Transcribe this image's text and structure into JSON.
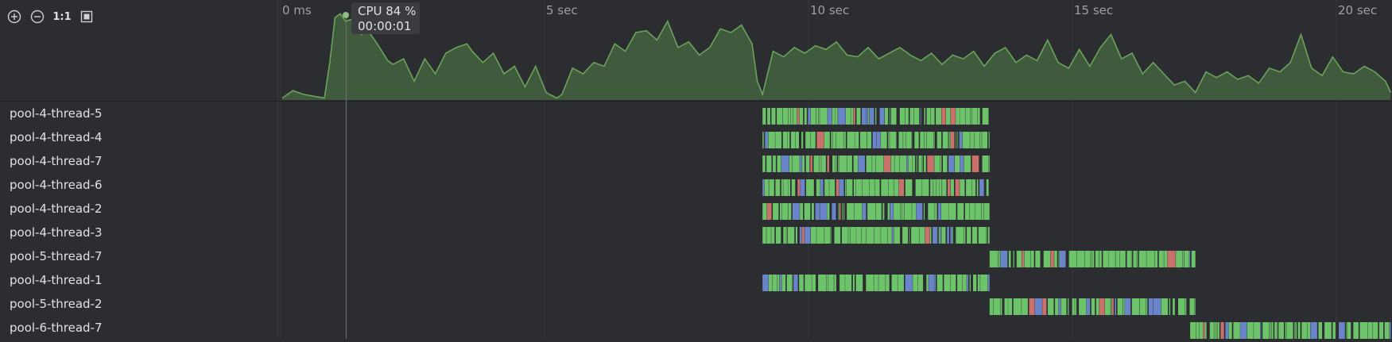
{
  "toolbar": {
    "zoom_in_icon": "plus-circle-icon",
    "zoom_out_icon": "minus-circle-icon",
    "actual_size_label": "1:1",
    "fit_icon": "fit-frame-icon"
  },
  "axis": {
    "ticks": [
      {
        "label": "0 ms",
        "seconds": 0
      },
      {
        "label": "5 sec",
        "seconds": 5
      },
      {
        "label": "10 sec",
        "seconds": 10
      },
      {
        "label": "15 sec",
        "seconds": 15
      },
      {
        "label": "20 sec",
        "seconds": 20
      }
    ],
    "range_seconds": [
      0,
      21.0
    ]
  },
  "tooltip": {
    "cpu_label": "CPU 84 %",
    "time_label": "00:00:01",
    "cursor_seconds": 1.2
  },
  "colors": {
    "cpu_fill": "#3f5a3c",
    "cpu_line": "#6aa35a",
    "running": "#6cc36a",
    "waiting": "#6a84c9",
    "blocked": "#c9706a",
    "background": "#2b2d30"
  },
  "threads": [
    {
      "name": "pool-4-thread-5",
      "start": 9.1,
      "end": 13.4
    },
    {
      "name": "pool-4-thread-4",
      "start": 9.1,
      "end": 13.4
    },
    {
      "name": "pool-4-thread-7",
      "start": 9.1,
      "end": 13.4
    },
    {
      "name": "pool-4-thread-6",
      "start": 9.1,
      "end": 13.4
    },
    {
      "name": "pool-4-thread-2",
      "start": 9.1,
      "end": 13.4
    },
    {
      "name": "pool-4-thread-3",
      "start": 9.1,
      "end": 13.4
    },
    {
      "name": "pool-5-thread-7",
      "start": 13.4,
      "end": 17.3
    },
    {
      "name": "pool-4-thread-1",
      "start": 9.1,
      "end": 13.4
    },
    {
      "name": "pool-5-thread-2",
      "start": 13.4,
      "end": 17.3
    },
    {
      "name": "pool-6-thread-7",
      "start": 17.2,
      "end": 21.0
    }
  ],
  "cpu_chart": {
    "type": "area",
    "ylim": [
      0,
      100
    ],
    "points": [
      [
        0.0,
        2
      ],
      [
        0.2,
        10
      ],
      [
        0.4,
        6
      ],
      [
        0.6,
        4
      ],
      [
        0.8,
        2
      ],
      [
        0.9,
        40
      ],
      [
        1.0,
        88
      ],
      [
        1.1,
        92
      ],
      [
        1.2,
        84
      ],
      [
        1.3,
        86
      ],
      [
        1.4,
        80
      ],
      [
        1.5,
        70
      ],
      [
        1.6,
        76
      ],
      [
        1.8,
        60
      ],
      [
        2.0,
        42
      ],
      [
        2.1,
        38
      ],
      [
        2.3,
        44
      ],
      [
        2.5,
        20
      ],
      [
        2.7,
        44
      ],
      [
        2.9,
        28
      ],
      [
        3.1,
        50
      ],
      [
        3.3,
        56
      ],
      [
        3.5,
        60
      ],
      [
        3.6,
        52
      ],
      [
        3.8,
        40
      ],
      [
        4.0,
        50
      ],
      [
        4.2,
        28
      ],
      [
        4.4,
        36
      ],
      [
        4.6,
        14
      ],
      [
        4.8,
        36
      ],
      [
        5.0,
        8
      ],
      [
        5.2,
        2
      ],
      [
        5.3,
        6
      ],
      [
        5.5,
        34
      ],
      [
        5.7,
        28
      ],
      [
        5.9,
        40
      ],
      [
        6.1,
        36
      ],
      [
        6.3,
        60
      ],
      [
        6.5,
        52
      ],
      [
        6.7,
        72
      ],
      [
        6.9,
        74
      ],
      [
        7.1,
        64
      ],
      [
        7.3,
        84
      ],
      [
        7.5,
        56
      ],
      [
        7.7,
        62
      ],
      [
        7.9,
        48
      ],
      [
        8.1,
        56
      ],
      [
        8.3,
        76
      ],
      [
        8.5,
        72
      ],
      [
        8.7,
        80
      ],
      [
        8.9,
        60
      ],
      [
        9.0,
        20
      ],
      [
        9.1,
        6
      ],
      [
        9.3,
        52
      ],
      [
        9.5,
        46
      ],
      [
        9.7,
        56
      ],
      [
        9.9,
        50
      ],
      [
        10.1,
        58
      ],
      [
        10.3,
        54
      ],
      [
        10.5,
        62
      ],
      [
        10.7,
        48
      ],
      [
        10.9,
        46
      ],
      [
        11.1,
        56
      ],
      [
        11.3,
        44
      ],
      [
        11.5,
        50
      ],
      [
        11.7,
        56
      ],
      [
        11.9,
        48
      ],
      [
        12.1,
        42
      ],
      [
        12.3,
        50
      ],
      [
        12.5,
        38
      ],
      [
        12.7,
        48
      ],
      [
        12.9,
        44
      ],
      [
        13.1,
        52
      ],
      [
        13.3,
        36
      ],
      [
        13.5,
        50
      ],
      [
        13.7,
        56
      ],
      [
        13.9,
        40
      ],
      [
        14.1,
        48
      ],
      [
        14.3,
        42
      ],
      [
        14.5,
        64
      ],
      [
        14.7,
        40
      ],
      [
        14.9,
        34
      ],
      [
        15.1,
        54
      ],
      [
        15.3,
        36
      ],
      [
        15.5,
        56
      ],
      [
        15.7,
        70
      ],
      [
        15.9,
        44
      ],
      [
        16.1,
        50
      ],
      [
        16.3,
        28
      ],
      [
        16.5,
        40
      ],
      [
        16.7,
        28
      ],
      [
        16.9,
        16
      ],
      [
        17.1,
        20
      ],
      [
        17.3,
        8
      ],
      [
        17.5,
        30
      ],
      [
        17.7,
        24
      ],
      [
        17.9,
        30
      ],
      [
        18.1,
        22
      ],
      [
        18.3,
        26
      ],
      [
        18.5,
        18
      ],
      [
        18.7,
        34
      ],
      [
        18.9,
        30
      ],
      [
        19.1,
        40
      ],
      [
        19.3,
        70
      ],
      [
        19.5,
        34
      ],
      [
        19.7,
        26
      ],
      [
        19.9,
        46
      ],
      [
        20.1,
        30
      ],
      [
        20.3,
        28
      ],
      [
        20.5,
        36
      ],
      [
        20.7,
        30
      ],
      [
        20.9,
        20
      ],
      [
        21.0,
        8
      ]
    ]
  }
}
